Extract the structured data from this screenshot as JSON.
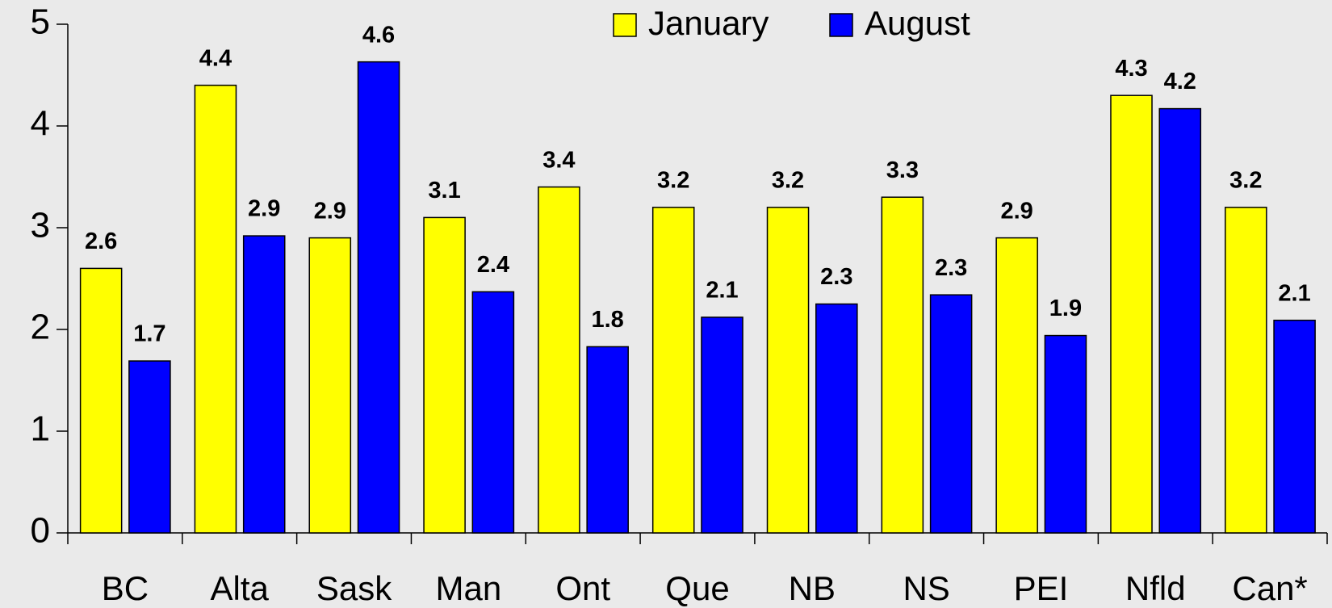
{
  "chart_data": {
    "type": "bar",
    "categories": [
      "BC",
      "Alta",
      "Sask",
      "Man",
      "Ont",
      "Que",
      "NB",
      "NS",
      "PEI",
      "Nfld",
      "Can*"
    ],
    "series": [
      {
        "name": "January",
        "color": "#ffff00",
        "values": [
          2.6,
          4.4,
          2.9,
          3.1,
          3.4,
          3.2,
          3.2,
          3.3,
          2.9,
          4.3,
          3.2
        ],
        "value_labels": [
          "2.6",
          "4.4",
          "2.9",
          "3.1",
          "3.4",
          "3.2",
          "3.2",
          "3.3",
          "2.9",
          "4.3",
          "3.2"
        ]
      },
      {
        "name": "August",
        "color": "#0000ff",
        "values": [
          1.69,
          2.92,
          4.63,
          2.37,
          1.83,
          2.12,
          2.25,
          2.34,
          1.94,
          4.17,
          2.09
        ],
        "value_labels": [
          "1.7",
          "2.9",
          "4.6",
          "2.4",
          "1.8",
          "2.1",
          "2.3",
          "2.3",
          "1.9",
          "4.2",
          "2.1"
        ]
      }
    ],
    "ylim": [
      0,
      5
    ],
    "yticks": [
      0,
      1,
      2,
      3,
      4,
      5
    ],
    "grid": false,
    "legend": "top"
  }
}
